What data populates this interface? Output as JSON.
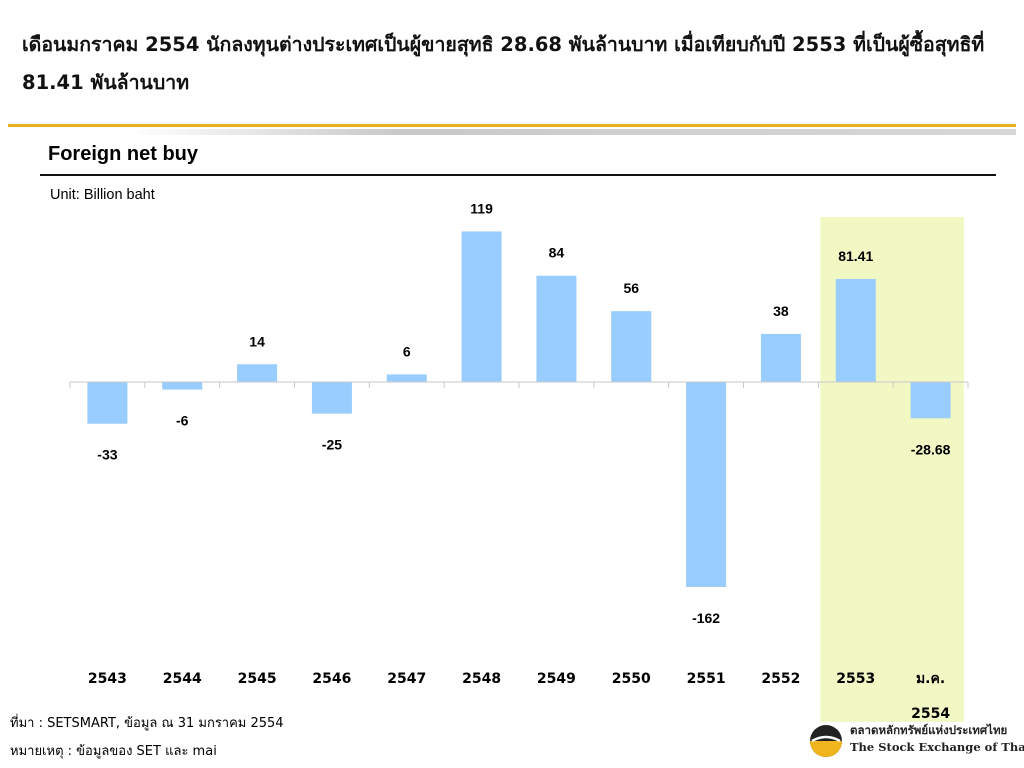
{
  "headline": "เดือนมกราคม 2554 นักลงทุนต่างประเทศเป็นผู้ขายสุทธิ 28.68 พันล้านบาท เมื่อเทียบกับปี 2553 ที่เป็นผู้ซื้อสุทธิที่ 81.41 พันล้านบาท",
  "colors": {
    "bar": "#99ccff",
    "highlight": "#f2f8c4",
    "gold_rule": "#e3b51d"
  },
  "chart_data": {
    "type": "bar",
    "title": "Foreign net buy",
    "unit_label": "Unit: Billion baht",
    "categories": [
      "2543",
      "2544",
      "2545",
      "2546",
      "2547",
      "2548",
      "2549",
      "2550",
      "2551",
      "2552",
      "2553",
      "ม.ค.\n2554"
    ],
    "values": [
      -33,
      -6,
      14,
      -25,
      6,
      119,
      84,
      56,
      -162,
      38,
      81.41,
      -28.68
    ],
    "data_labels": [
      "-33",
      "-6",
      "14",
      "-25",
      "6",
      "119",
      "84",
      "56",
      "-162",
      "38",
      "81.41",
      "-28.68"
    ],
    "highlight_categories": [
      "2553",
      "ม.ค.\n2554"
    ],
    "ylim": [
      -170,
      130
    ],
    "grid": false,
    "legend": "none"
  },
  "footer": {
    "source": "ที่มา : SETSMART, ข้อมูล ณ 31 มกราคม 2554",
    "note": "หมายเหตุ : ข้อมูลของ SET และ mai"
  },
  "logo": {
    "icon": "set-logo-icon",
    "thai_name": "ตลาดหลักทรัพย์แห่งประเทศไทย",
    "english_name": "The Stock Exchange of Thailand"
  }
}
